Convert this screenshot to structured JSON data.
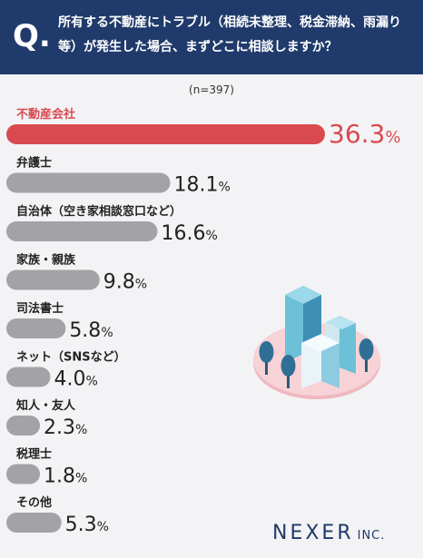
{
  "header": {
    "q_mark": "Q.",
    "question": "所有する不動産にトラブル（相続未整理、税金滞納、雨漏り等）が発生した場合、まずどこに相談しますか？"
  },
  "sample_size": "(n=397)",
  "logo": {
    "name": "NEXER",
    "suffix": "INC."
  },
  "colors": {
    "header_bg": "#1f3a6b",
    "highlight": "#d94a50",
    "bar": "#a3a3a6",
    "text": "#222222"
  },
  "chart_data": {
    "type": "bar",
    "orientation": "horizontal",
    "unit": "%",
    "categories": [
      "不動産会社",
      "弁護士",
      "自治体（空き家相談窓口など）",
      "家族・親族",
      "司法書士",
      "ネット（SNSなど）",
      "知人・友人",
      "税理士",
      "その他"
    ],
    "values": [
      36.3,
      18.1,
      16.6,
      9.8,
      5.8,
      4.0,
      2.3,
      1.8,
      5.3
    ],
    "value_labels": [
      "36.3%",
      "18.1%",
      "16.6%",
      "9.8%",
      "5.8%",
      "4.0%",
      "2.3%",
      "1.8%",
      "5.3%"
    ],
    "highlight_index": 0
  }
}
